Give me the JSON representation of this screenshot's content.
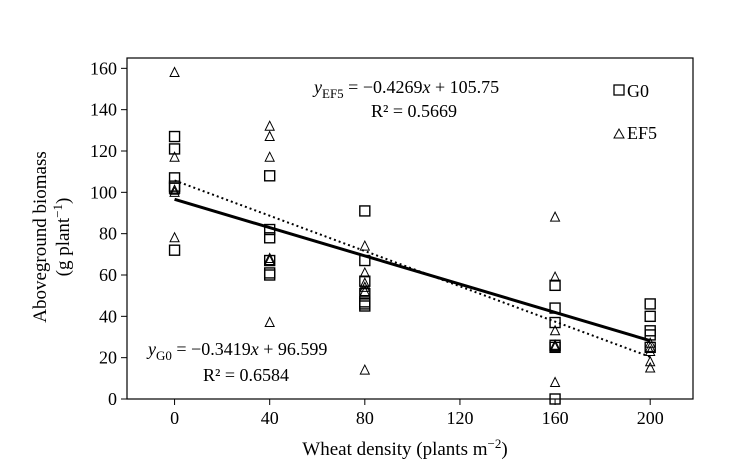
{
  "chart_data": {
    "type": "scatter",
    "xlabel": "Wheat density (plants m",
    "xlabel_sup": "−2",
    "xlabel_tail": ")",
    "ylabel_line1": "Aboveground biomass",
    "ylabel_line2": "(g plant",
    "ylabel_sup": "−1",
    "ylabel_tail": ")",
    "xlim": [
      -20,
      218
    ],
    "ylim": [
      0,
      165
    ],
    "xticks": [
      0,
      40,
      80,
      120,
      160,
      200
    ],
    "yticks": [
      0,
      20,
      40,
      60,
      80,
      100,
      120,
      140,
      160
    ],
    "x_tick_labels": [
      "0",
      "40",
      "80",
      "120",
      "160",
      "200"
    ],
    "y_tick_labels": [
      "0",
      "20",
      "40",
      "60",
      "80",
      "100",
      "120",
      "140",
      "160"
    ],
    "grid": false,
    "legend_position": "top-right",
    "series": [
      {
        "name": "G0",
        "marker": "square",
        "x": [
          0,
          0,
          0,
          0,
          0,
          0,
          40,
          40,
          40,
          40,
          40,
          40,
          80,
          80,
          80,
          80,
          80,
          80,
          80,
          160,
          160,
          160,
          160,
          160,
          160,
          200,
          200,
          200,
          200,
          200
        ],
        "y": [
          127,
          121,
          107,
          103,
          102,
          72,
          108,
          82,
          78,
          67,
          61,
          60,
          91,
          67,
          57,
          51,
          47,
          45,
          46,
          55,
          44,
          37,
          26,
          25,
          0,
          46,
          40,
          33,
          31,
          25
        ]
      },
      {
        "name": "EF5",
        "marker": "triangle",
        "x": [
          0,
          0,
          0,
          0,
          0,
          40,
          40,
          40,
          40,
          40,
          40,
          80,
          80,
          80,
          80,
          80,
          80,
          160,
          160,
          160,
          160,
          160,
          160,
          200,
          200,
          200,
          200,
          200
        ],
        "y": [
          158,
          117,
          101,
          100,
          78,
          132,
          127,
          117,
          68,
          67,
          37,
          74,
          61,
          56,
          54,
          52,
          14,
          88,
          59,
          33,
          26,
          25,
          8,
          27,
          25,
          23,
          18,
          15
        ]
      }
    ],
    "fit_lines": [
      {
        "series": "G0",
        "style": "solid",
        "slope": -0.3419,
        "intercept": 96.599,
        "eq_var": "y",
        "eq_sub": "G0",
        "eq_rest": " = −0.3419",
        "eq_x": "x",
        "eq_tail": " + 96.599",
        "r2_text": "R² = 0.6584"
      },
      {
        "series": "EF5",
        "style": "dotted",
        "slope": -0.4269,
        "intercept": 105.75,
        "eq_var": "y",
        "eq_sub": "EF5",
        "eq_rest": " = −0.4269",
        "eq_x": "x",
        "eq_tail": " + 105.75",
        "r2_text": "R² = 0.5669"
      }
    ]
  },
  "colors": {
    "ink": "#000000",
    "background": "#ffffff"
  }
}
